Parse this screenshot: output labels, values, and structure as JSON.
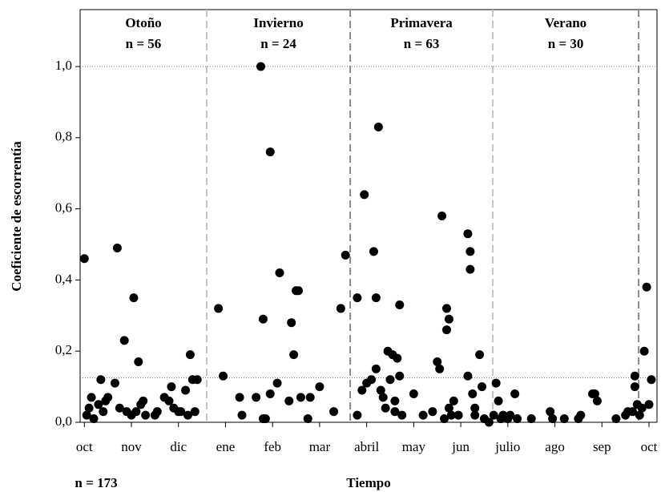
{
  "chart_data": {
    "type": "scatter",
    "y_label": "Coeficiente de escorrentía",
    "x_label": "Tiempo",
    "total_label": "n = 173",
    "xlim": [
      -0.09,
      12.17
    ],
    "ylim": [
      0,
      1.16
    ],
    "xticks": [
      {
        "value": 0,
        "label": "oct"
      },
      {
        "value": 1,
        "label": "nov"
      },
      {
        "value": 2,
        "label": "dic"
      },
      {
        "value": 3,
        "label": "ene"
      },
      {
        "value": 4,
        "label": "feb"
      },
      {
        "value": 5,
        "label": "mar"
      },
      {
        "value": 6,
        "label": "abril"
      },
      {
        "value": 7,
        "label": "may"
      },
      {
        "value": 8,
        "label": "jun"
      },
      {
        "value": 9,
        "label": "julio"
      },
      {
        "value": 10,
        "label": "ago"
      },
      {
        "value": 11,
        "label": "sep"
      },
      {
        "value": 12,
        "label": "oct"
      }
    ],
    "yticks": [
      {
        "value": 0,
        "label": "0,0"
      },
      {
        "value": 0.2,
        "label": "0,2"
      },
      {
        "value": 0.4,
        "label": "0,4"
      },
      {
        "value": 0.6,
        "label": "0,6"
      },
      {
        "value": 0.8,
        "label": "0,8"
      },
      {
        "value": 1.0,
        "label": "1,0"
      }
    ],
    "reference_lines": [
      1.0,
      0.125
    ],
    "dividers": [
      2.6,
      5.65,
      8.68,
      11.78
    ],
    "divider_colors": [
      "#c4c4c4",
      "#8a8a8a",
      "#c4c4c4",
      "#8a8a8a"
    ],
    "seasons": [
      {
        "name": "Otoño",
        "label": "n = 56"
      },
      {
        "name": "Invierno",
        "label": "n = 24"
      },
      {
        "name": "Primavera",
        "label": "n = 63"
      },
      {
        "name": "Verano",
        "label": "n = 30"
      }
    ],
    "series": [
      {
        "color": "#000000",
        "x": [
          0,
          0.05,
          0.1,
          0.15,
          0.2,
          0.3,
          0.35,
          0.4,
          0.45,
          0.5,
          0.65,
          0.7,
          0.75,
          0.85,
          0.9,
          1.0,
          1.05,
          1.1,
          1.15,
          1.2,
          1.25,
          1.3,
          1.5,
          1.55,
          1.7,
          1.8,
          1.85,
          1.9,
          2.0,
          2.05,
          2.15,
          2.2,
          2.25,
          2.3,
          2.35,
          2.4,
          2.85,
          2.95,
          3.3,
          3.35,
          3.65,
          3.75,
          3.8,
          3.8,
          3.85,
          3.95,
          3.95,
          4.1,
          4.15,
          4.35,
          4.4,
          4.45,
          4.5,
          4.55,
          4.6,
          4.75,
          4.8,
          5.0,
          5.3,
          5.45,
          5.55,
          5.8,
          5.8,
          5.9,
          5.95,
          6.0,
          6.1,
          6.15,
          6.2,
          6.2,
          6.25,
          6.3,
          6.35,
          6.4,
          6.45,
          6.5,
          6.55,
          6.6,
          6.6,
          6.65,
          6.7,
          6.7,
          6.75,
          7.0,
          7.2,
          7.4,
          7.5,
          7.55,
          7.6,
          7.65,
          7.7,
          7.7,
          7.75,
          7.75,
          7.8,
          7.85,
          7.95,
          8.15,
          8.15,
          8.2,
          8.2,
          8.25,
          8.3,
          8.3,
          8.4,
          8.45,
          8.5,
          8.6,
          8.7,
          8.75,
          8.8,
          8.85,
          8.9,
          9.0,
          9.05,
          9.15,
          9.2,
          9.5,
          9.9,
          9.95,
          10.2,
          10.5,
          10.55,
          10.8,
          10.85,
          10.9,
          11.3,
          11.5,
          11.55,
          11.65,
          11.7,
          11.7,
          11.75,
          11.8,
          11.85,
          11.9,
          11.95,
          12.0,
          12.05
        ],
        "values": [
          0.46,
          0.02,
          0.04,
          0.07,
          0.01,
          0.05,
          0.12,
          0.03,
          0.06,
          0.07,
          0.11,
          0.49,
          0.04,
          0.23,
          0.03,
          0.02,
          0.35,
          0.03,
          0.17,
          0.05,
          0.06,
          0.02,
          0.02,
          0.03,
          0.07,
          0.06,
          0.1,
          0.04,
          0.03,
          0.03,
          0.09,
          0.02,
          0.19,
          0.12,
          0.03,
          0.12,
          0.32,
          0.13,
          0.07,
          0.02,
          0.07,
          1.0,
          0.29,
          0.01,
          0.01,
          0.76,
          0.08,
          0.11,
          0.42,
          0.06,
          0.28,
          0.19,
          0.37,
          0.37,
          0.07,
          0.01,
          0.07,
          0.1,
          0.03,
          0.32,
          0.47,
          0.35,
          0.02,
          0.09,
          0.64,
          0.11,
          0.12,
          0.48,
          0.15,
          0.35,
          0.83,
          0.09,
          0.07,
          0.04,
          0.2,
          0.12,
          0.19,
          0.06,
          0.03,
          0.18,
          0.33,
          0.13,
          0.02,
          0.08,
          0.02,
          0.03,
          0.17,
          0.15,
          0.58,
          0.01,
          0.32,
          0.26,
          0.29,
          0.04,
          0.02,
          0.06,
          0.02,
          0.53,
          0.13,
          0.48,
          0.43,
          0.08,
          0.04,
          0.02,
          0.19,
          0.1,
          0.01,
          0.0,
          0.02,
          0.11,
          0.06,
          0.01,
          0.02,
          0.01,
          0.02,
          0.08,
          0.01,
          0.01,
          0.03,
          0.01,
          0.01,
          0.01,
          0.02,
          0.08,
          0.08,
          0.06,
          0.01,
          0.02,
          0.03,
          0.03,
          0.13,
          0.1,
          0.05,
          0.02,
          0.04,
          0.2,
          0.38,
          0.05,
          0.12
        ]
      }
    ]
  }
}
